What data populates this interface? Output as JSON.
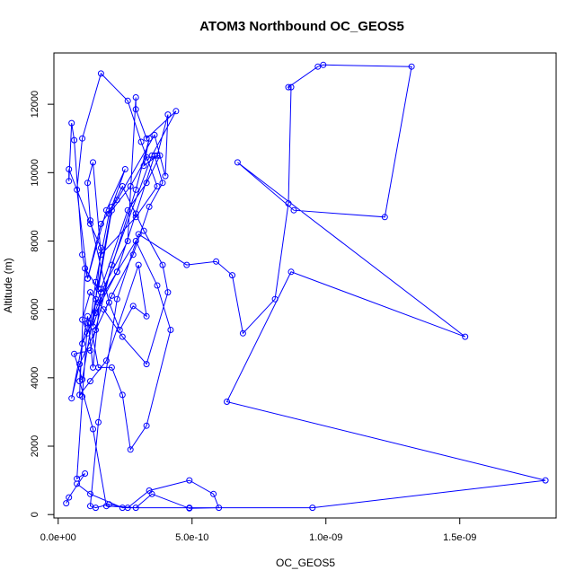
{
  "chart_data": {
    "type": "line",
    "title": "ATOM3 Northbound OC_GEOS5",
    "xlabel": "OC_GEOS5",
    "ylabel": "Altitude (m)",
    "xlim": [
      -1.6e-11,
      1.86e-09
    ],
    "ylim": [
      -100,
      13500
    ],
    "x_ticks": [
      0,
      5e-10,
      1e-09,
      1.5e-09
    ],
    "x_tick_labels": [
      "0.0e+00",
      "5.0e-10",
      "1.0e-09",
      "1.5e-09"
    ],
    "y_ticks": [
      0,
      2000,
      4000,
      6000,
      8000,
      10000,
      12000
    ],
    "y_tick_labels": [
      "0",
      "2000",
      "4000",
      "6000",
      "8000",
      "10000",
      "12000"
    ],
    "grid": false,
    "legend": "none",
    "series": [
      {
        "color": "#0000ff",
        "marker": "open-circle",
        "x": [
          3e-11,
          4e-11,
          1e-10,
          7e-11,
          9e-11,
          1.1e-10,
          1.6e-10,
          2.6e-10,
          2.9e-10,
          2.9e-10,
          3.3e-10,
          4.4e-10,
          3.5e-10,
          2e-10,
          1.2e-10,
          6e-11,
          9e-11,
          1.4e-10,
          2e-10,
          2.5e-10,
          1.8e-10,
          1.1e-10,
          9e-11,
          6e-11,
          5e-11,
          4e-11,
          4e-11,
          1.2e-10,
          1.6e-10,
          1.3e-10,
          2.9e-10,
          3.4e-10,
          3.2e-10,
          3.7e-10,
          4.1e-10,
          4e-10,
          3.6e-10,
          2.2e-10,
          1.6e-10,
          1.1e-10,
          7e-11,
          9e-11,
          1.6e-10,
          2.6e-10,
          3.1e-10,
          3.7e-10,
          2.9e-10,
          1.6e-10,
          1.3e-10,
          1.1e-10,
          1.2e-10,
          1.9e-10,
          2.3e-10,
          2.8e-10,
          3.3e-10,
          3e-10,
          1.8e-10,
          1.2e-10,
          8e-11,
          1e-10,
          1.5e-10,
          2e-10,
          2.7e-10,
          3.3e-10,
          3.8e-10,
          3.3e-10,
          2.6e-10,
          1.6e-10,
          1.3e-10,
          1.1e-10,
          5e-11,
          8e-11,
          1.4e-10,
          2e-10,
          2.8e-10,
          3.4e-10,
          3.9e-10,
          3.6e-10,
          2.9e-10,
          2.2e-10,
          1.5e-10,
          1.1e-10,
          9e-11,
          1.2e-10,
          1.7e-10,
          2.4e-10,
          3.3e-10,
          4.1e-10,
          3.9e-10,
          3.2e-10,
          2.4e-10,
          1.9e-10,
          1.4e-10,
          1.2e-10,
          1.5e-10,
          2e-10,
          2.4e-10,
          2.7e-10,
          3.3e-10,
          4.2e-10,
          3.7e-10,
          2.9e-10,
          2.2e-10,
          1.4e-10,
          9e-11,
          8e-11,
          1.3e-10,
          1.8e-10,
          2.9e-10,
          3.5e-10,
          4.9e-10,
          6e-10,
          5.8e-10,
          4.9e-10,
          3.4e-10,
          2.6e-10,
          1.9e-10,
          1.4e-10,
          1.2e-10,
          1.5e-10,
          2.2e-10,
          3e-10,
          4.8e-10,
          5.9e-10,
          6.5e-10,
          6.9e-10,
          8.1e-10,
          8.6e-10,
          8.7e-10,
          8.6e-10,
          9.7e-10,
          9.9e-10,
          1.32e-09,
          1.22e-09,
          8.8e-10,
          6.7e-10,
          1.52e-09,
          8.7e-10,
          6.3e-10,
          1.82e-09,
          9.5e-10,
          4.9e-10,
          2.4e-10,
          1.2e-10,
          7e-11
        ],
        "y": [
          330,
          500,
          1200,
          1050,
          3450,
          5600,
          6500,
          8000,
          12200,
          11850,
          11000,
          11800,
          10500,
          7300,
          4800,
          4700,
          3950,
          6300,
          9000,
          10100,
          8900,
          6900,
          7600,
          10950,
          11450,
          9750,
          10100,
          8500,
          7800,
          5500,
          9500,
          11000,
          10200,
          10500,
          11700,
          9900,
          11100,
          9200,
          8500,
          6900,
          9500,
          11000,
          12900,
          12100,
          10900,
          9600,
          8700,
          7600,
          10300,
          9700,
          8600,
          6200,
          5400,
          6100,
          5800,
          7300,
          4500,
          3900,
          3500,
          7200,
          6600,
          8900,
          9600,
          10450,
          10500,
          9700,
          8900,
          6600,
          4300,
          5800,
          3400,
          4400,
          5400,
          6400,
          7600,
          9000,
          9700,
          10500,
          8800,
          7100,
          6200,
          5300,
          5700,
          6500,
          6000,
          5200,
          4400,
          6500,
          7300,
          8300,
          9600,
          8800,
          6800,
          5600,
          4300,
          4300,
          3500,
          1900,
          2600,
          5400,
          6700,
          8000,
          7100,
          5900,
          5000,
          3900,
          2500,
          250,
          200,
          600,
          180,
          200,
          600,
          1000,
          700,
          200,
          300,
          200,
          250,
          2700,
          6300,
          8200,
          7300,
          7400,
          7000,
          5300,
          6300,
          9100,
          12500,
          12500,
          13100,
          13150,
          13100,
          8700,
          8900,
          10300,
          5200,
          7100,
          3300,
          1000,
          200,
          200,
          200,
          600,
          900
        ]
      }
    ]
  }
}
